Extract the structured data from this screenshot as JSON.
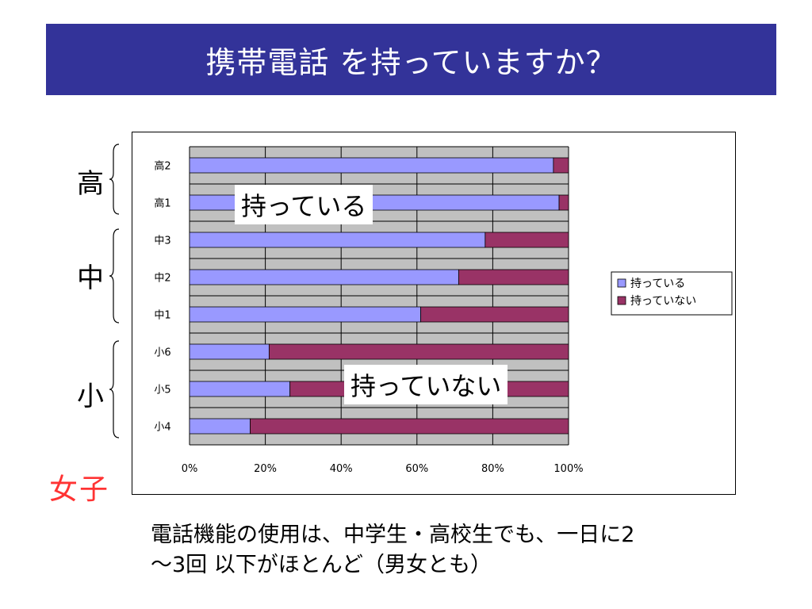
{
  "title": "携帯電話 を持っていますか？",
  "groups": {
    "high": "高",
    "middle": "中",
    "elementary": "小"
  },
  "gender_label": "女子",
  "annotations": {
    "have": "持っている",
    "not_have": "持っていない"
  },
  "footer": {
    "line1": "電話機能の使用は、中学生・高校生でも、一日に2",
    "line2": "～3回 以下がほとんど（男女とも）"
  },
  "colors": {
    "title_bg": "#333399",
    "have": "#9999ff",
    "not_have": "#993366",
    "plot_bg": "#c0c0c0",
    "gender": "#ff3333"
  },
  "chart_data": {
    "type": "bar",
    "orientation": "horizontal",
    "stacked": "percent",
    "categories": [
      "高2",
      "高1",
      "中3",
      "中2",
      "中1",
      "小6",
      "小5",
      "小4"
    ],
    "series": [
      {
        "name": "持っている",
        "values": [
          96,
          97.5,
          78,
          71,
          61,
          21,
          26.5,
          16
        ]
      },
      {
        "name": "持っていない",
        "values": [
          4,
          2.5,
          22,
          29,
          39,
          79,
          73.5,
          84
        ]
      }
    ],
    "xticks": [
      "0%",
      "20%",
      "40%",
      "60%",
      "80%",
      "100%"
    ],
    "xlim": [
      0,
      100
    ],
    "grid": true,
    "legend": "right"
  }
}
